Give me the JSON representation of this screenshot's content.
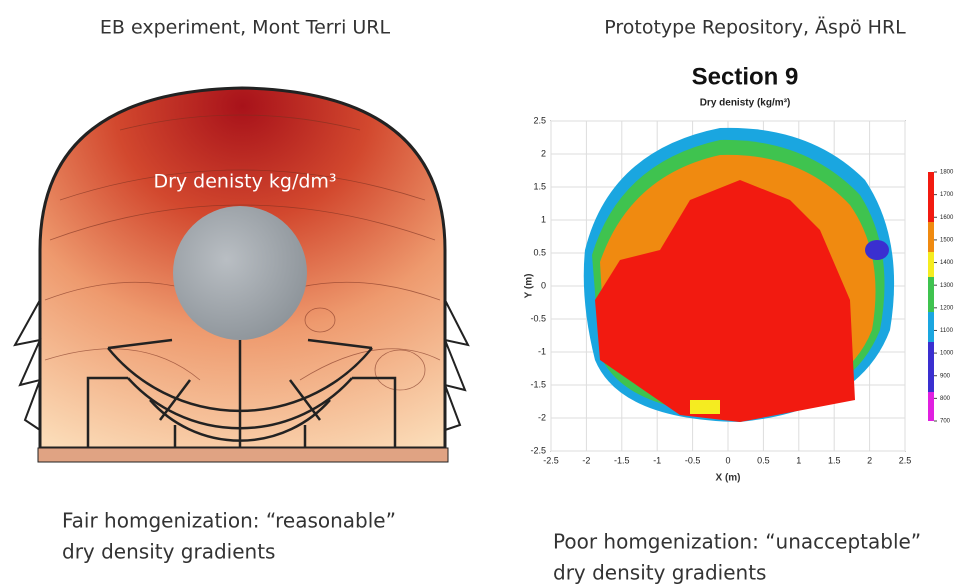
{
  "left": {
    "caption": "EB experiment, Mont Terri URL",
    "label": "Dry denisty kg/dm³",
    "note": [
      "Fair homgenization: “reasonable”",
      "dry density gradients"
    ]
  },
  "right": {
    "caption": "Prototype Repository, Äspö HRL",
    "chart_data": {
      "type": "heatmap",
      "title": "Section 9",
      "subtitle": "Dry denisty (kg/m³)",
      "x_label": "X (m)",
      "y_label": "Y (m)",
      "xlim": [
        -2.5,
        2.5
      ],
      "ylim": [
        -2.5,
        2.5
      ],
      "xticks": [
        -2.5,
        -2,
        -1.5,
        -1,
        -0.5,
        0,
        0.5,
        1,
        1.5,
        2,
        2.5
      ],
      "yticks": [
        -2.5,
        -2,
        -1.5,
        -1,
        -0.5,
        0,
        0.5,
        1,
        1.5,
        2,
        2.5
      ],
      "grid": true,
      "colorbar": {
        "lim": [
          700,
          1800
        ],
        "ticks": [
          700,
          800,
          900,
          1000,
          1100,
          1200,
          1300,
          1400,
          1500,
          1600,
          1700,
          1800
        ]
      }
    },
    "note": [
      "Poor homgenization: “unacceptable”",
      "dry density gradients"
    ]
  }
}
